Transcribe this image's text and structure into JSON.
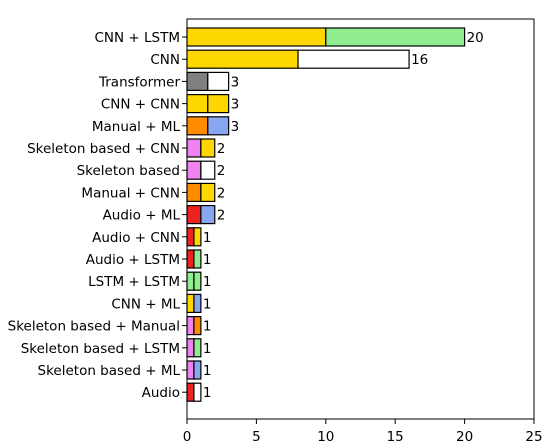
{
  "chart_data": {
    "type": "bar",
    "orientation": "horizontal",
    "stacked": true,
    "title": "",
    "xlabel": "",
    "ylabel": "",
    "xlim": [
      0,
      25
    ],
    "x_ticks": [
      "0",
      "5",
      "10",
      "15",
      "20",
      "25"
    ],
    "grid": false,
    "legend": "none",
    "colors": {
      "yellow": "#ffd700",
      "green": "#90ee90",
      "white": "#ffffff",
      "gray": "#808080",
      "orange": "#ff8c00",
      "blue": "#87a8f0",
      "violet": "#ee82ee",
      "red": "#ee2222",
      "edge": "#000000"
    },
    "bars": [
      {
        "label": "CNN + LSTM",
        "total": "20",
        "segments": [
          {
            "value": 10,
            "color": "yellow"
          },
          {
            "value": 10,
            "color": "green"
          }
        ]
      },
      {
        "label": "CNN",
        "total": "16",
        "segments": [
          {
            "value": 8,
            "color": "yellow"
          },
          {
            "value": 8,
            "color": "white"
          }
        ]
      },
      {
        "label": "Transformer",
        "total": "3",
        "segments": [
          {
            "value": 1.5,
            "color": "gray"
          },
          {
            "value": 1.5,
            "color": "white"
          }
        ]
      },
      {
        "label": "CNN + CNN",
        "total": "3",
        "segments": [
          {
            "value": 1.5,
            "color": "yellow"
          },
          {
            "value": 1.5,
            "color": "yellow"
          }
        ]
      },
      {
        "label": "Manual + ML",
        "total": "3",
        "segments": [
          {
            "value": 1.5,
            "color": "orange"
          },
          {
            "value": 1.5,
            "color": "blue"
          }
        ]
      },
      {
        "label": "Skeleton based + CNN",
        "total": "2",
        "segments": [
          {
            "value": 1,
            "color": "violet"
          },
          {
            "value": 1,
            "color": "yellow"
          }
        ]
      },
      {
        "label": "Skeleton based",
        "total": "2",
        "segments": [
          {
            "value": 1,
            "color": "violet"
          },
          {
            "value": 1,
            "color": "white"
          }
        ]
      },
      {
        "label": "Manual + CNN",
        "total": "2",
        "segments": [
          {
            "value": 1,
            "color": "orange"
          },
          {
            "value": 1,
            "color": "yellow"
          }
        ]
      },
      {
        "label": "Audio + ML",
        "total": "2",
        "segments": [
          {
            "value": 1,
            "color": "red"
          },
          {
            "value": 1,
            "color": "blue"
          }
        ]
      },
      {
        "label": "Audio + CNN",
        "total": "1",
        "segments": [
          {
            "value": 0.5,
            "color": "red"
          },
          {
            "value": 0.5,
            "color": "yellow"
          }
        ]
      },
      {
        "label": "Audio + LSTM",
        "total": "1",
        "segments": [
          {
            "value": 0.5,
            "color": "red"
          },
          {
            "value": 0.5,
            "color": "green"
          }
        ]
      },
      {
        "label": "LSTM + LSTM",
        "total": "1",
        "segments": [
          {
            "value": 0.5,
            "color": "green"
          },
          {
            "value": 0.5,
            "color": "green"
          }
        ]
      },
      {
        "label": "CNN + ML",
        "total": "1",
        "segments": [
          {
            "value": 0.5,
            "color": "yellow"
          },
          {
            "value": 0.5,
            "color": "blue"
          }
        ]
      },
      {
        "label": "Skeleton based + Manual",
        "total": "1",
        "segments": [
          {
            "value": 0.5,
            "color": "violet"
          },
          {
            "value": 0.5,
            "color": "orange"
          }
        ]
      },
      {
        "label": "Skeleton based + LSTM",
        "total": "1",
        "segments": [
          {
            "value": 0.5,
            "color": "violet"
          },
          {
            "value": 0.5,
            "color": "green"
          }
        ]
      },
      {
        "label": "Skeleton based + ML",
        "total": "1",
        "segments": [
          {
            "value": 0.5,
            "color": "violet"
          },
          {
            "value": 0.5,
            "color": "blue"
          }
        ]
      },
      {
        "label": "Audio",
        "total": "1",
        "segments": [
          {
            "value": 0.5,
            "color": "red"
          },
          {
            "value": 0.5,
            "color": "white"
          }
        ]
      }
    ]
  }
}
